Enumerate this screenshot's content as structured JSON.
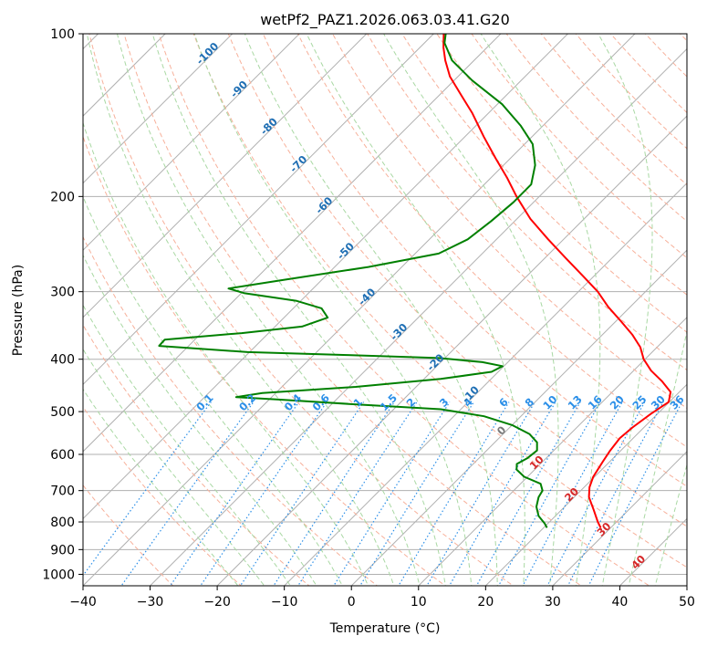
{
  "chart_data": {
    "type": "skew-t",
    "title": "wetPf2_PAZ1.2026.063.03.41.G20",
    "xlabel": "Temperature (°C)",
    "ylabel": "Pressure (hPa)",
    "xlim": [
      -40,
      50
    ],
    "ylim_hpa": [
      1050,
      100
    ],
    "x_ticks": [
      -40,
      -30,
      -20,
      -10,
      0,
      10,
      20,
      30,
      40,
      50
    ],
    "x_tick_labels": [
      "−40",
      "−30",
      "−20",
      "−10",
      "0",
      "10",
      "20",
      "30",
      "40",
      "50"
    ],
    "y_ticks": [
      100,
      200,
      300,
      400,
      500,
      600,
      700,
      800,
      900,
      1000
    ],
    "y_tick_labels": [
      "100",
      "200",
      "300",
      "400",
      "500",
      "600",
      "700",
      "800",
      "900",
      "1000"
    ],
    "grid": true,
    "background_lines": {
      "isotherms_c": [
        -100,
        -90,
        -80,
        -70,
        -60,
        -50,
        -40,
        -30,
        -20,
        -10,
        0,
        10,
        20,
        30,
        40
      ],
      "isotherm_labels": [
        "-100",
        "-90",
        "-80",
        "-70",
        "-60",
        "-50",
        "-40",
        "-30",
        "-20",
        "-10",
        "0",
        "10",
        "20",
        "30",
        "40"
      ],
      "mixing_ratios_gkg": [
        0.1,
        0.2,
        0.4,
        0.6,
        1,
        1.5,
        2,
        3,
        4,
        6,
        8,
        10,
        13,
        16,
        20,
        25,
        30,
        36
      ],
      "mixing_ratio_labels": [
        "0.1",
        "0.2",
        "0.4",
        "0.6",
        "1",
        "1.5",
        "2",
        "3",
        "4",
        "6",
        "8",
        "10",
        "13",
        "16",
        "20",
        "25",
        "30",
        "36"
      ],
      "dry_adiabats": true,
      "moist_adiabats": true
    },
    "series": [
      {
        "role": "temperature",
        "color": "#ff0000",
        "points": [
          [
            820,
            28.5
          ],
          [
            800,
            27.2
          ],
          [
            760,
            24.8
          ],
          [
            720,
            22.2
          ],
          [
            690,
            20.8
          ],
          [
            660,
            19.8
          ],
          [
            620,
            19.0
          ],
          [
            590,
            18.4
          ],
          [
            560,
            18.0
          ],
          [
            535,
            18.3
          ],
          [
            505,
            19.0
          ],
          [
            480,
            19.9
          ],
          [
            460,
            18.7
          ],
          [
            440,
            15.9
          ],
          [
            420,
            12.6
          ],
          [
            400,
            9.8
          ],
          [
            380,
            7.5
          ],
          [
            360,
            4.4
          ],
          [
            340,
            0.7
          ],
          [
            320,
            -3.3
          ],
          [
            300,
            -7.1
          ],
          [
            280,
            -11.8
          ],
          [
            260,
            -16.9
          ],
          [
            240,
            -22.3
          ],
          [
            220,
            -28.0
          ],
          [
            200,
            -33.4
          ],
          [
            185,
            -37.5
          ],
          [
            170,
            -42.2
          ],
          [
            155,
            -47.2
          ],
          [
            140,
            -52.5
          ],
          [
            130,
            -56.7
          ],
          [
            120,
            -61.2
          ],
          [
            112,
            -64.3
          ],
          [
            106,
            -66.5
          ],
          [
            100,
            -68.5
          ]
        ]
      },
      {
        "role": "dewpoint",
        "color": "#008000",
        "points": [
          [
            820,
            20.5
          ],
          [
            805,
            19.5
          ],
          [
            780,
            17.5
          ],
          [
            750,
            15.8
          ],
          [
            720,
            14.7
          ],
          [
            700,
            14.3
          ],
          [
            680,
            13.0
          ],
          [
            660,
            9.5
          ],
          [
            640,
            7.3
          ],
          [
            625,
            6.5
          ],
          [
            610,
            7.2
          ],
          [
            590,
            7.5
          ],
          [
            570,
            6.3
          ],
          [
            550,
            3.9
          ],
          [
            530,
            0.1
          ],
          [
            510,
            -5.5
          ],
          [
            495,
            -13.0
          ],
          [
            484,
            -27.5
          ],
          [
            475,
            -38.6
          ],
          [
            470,
            -45.3
          ],
          [
            462,
            -42.0
          ],
          [
            450,
            -29.0
          ],
          [
            435,
            -17.5
          ],
          [
            422,
            -11.0
          ],
          [
            412,
            -10.2
          ],
          [
            405,
            -13.8
          ],
          [
            398,
            -20.9
          ],
          [
            393,
            -35.0
          ],
          [
            388,
            -50.3
          ],
          [
            378,
            -64.4
          ],
          [
            368,
            -64.5
          ],
          [
            358,
            -54.0
          ],
          [
            348,
            -46.0
          ],
          [
            335,
            -43.5
          ],
          [
            322,
            -45.8
          ],
          [
            312,
            -50.6
          ],
          [
            302,
            -59.5
          ],
          [
            296,
            -62.6
          ],
          [
            285,
            -55.5
          ],
          [
            270,
            -45.0
          ],
          [
            255,
            -36.5
          ],
          [
            240,
            -34.3
          ],
          [
            222,
            -33.5
          ],
          [
            205,
            -33.0
          ],
          [
            190,
            -33.0
          ],
          [
            175,
            -35.3
          ],
          [
            160,
            -38.8
          ],
          [
            148,
            -43.3
          ],
          [
            135,
            -49.3
          ],
          [
            122,
            -57.3
          ],
          [
            112,
            -63.3
          ],
          [
            104,
            -67.0
          ],
          [
            100,
            -68.2
          ]
        ]
      }
    ]
  }
}
